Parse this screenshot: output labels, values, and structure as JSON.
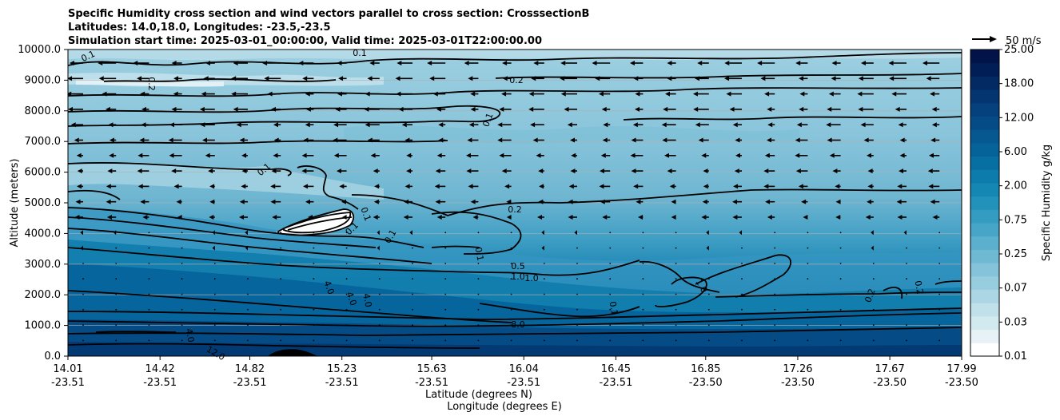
{
  "title": {
    "line1": "Specific Humidity cross section and wind vectors parallel to cross section: CrosssectionB",
    "line2": "Latitudes: 14.0,18.0, Longitudes: -23.5,-23.5",
    "line3": "Simulation start time: 2025-03-01_00:00:00, Valid time: 2025-03-01T22:00:00.00"
  },
  "colors": {
    "contour_line": "#000000",
    "grid": "#b0b0b0",
    "colorbar": [
      "#ffffff",
      "#e6f2f5",
      "#d3e9f0",
      "#c0e0ea",
      "#acd6e4",
      "#98cddf",
      "#84c3d9",
      "#70b9d3",
      "#5bb0cd",
      "#47a6c7",
      "#349cc1",
      "#2292bb",
      "#1587b3",
      "#0d7bab",
      "#086fa3",
      "#06639a",
      "#055890",
      "#054c86",
      "#05417c",
      "#043570",
      "#032a63",
      "#021e57",
      "#02134a"
    ]
  },
  "chart_data": {
    "type": "contourf",
    "ylabel": "Altitude (meters)",
    "xlabel_lat": "Latitude (degrees N)",
    "xlabel_lon": "Longitude (degrees E)",
    "ylim": [
      0,
      10000
    ],
    "yticks": [
      "0.0",
      "1000.0",
      "2000.0",
      "3000.0",
      "4000.0",
      "5000.0",
      "6000.0",
      "7000.0",
      "8000.0",
      "9000.0",
      "10000.0"
    ],
    "xticks": [
      {
        "lat": "14.01",
        "lon": "-23.51"
      },
      {
        "lat": "14.42",
        "lon": "-23.51"
      },
      {
        "lat": "14.82",
        "lon": "-23.51"
      },
      {
        "lat": "15.23",
        "lon": "-23.51"
      },
      {
        "lat": "15.63",
        "lon": "-23.51"
      },
      {
        "lat": "16.04",
        "lon": "-23.51"
      },
      {
        "lat": "16.45",
        "lon": "-23.51"
      },
      {
        "lat": "16.85",
        "lon": "-23.50"
      },
      {
        "lat": "17.26",
        "lon": "-23.50"
      },
      {
        "lat": "17.67",
        "lon": "-23.50"
      },
      {
        "lat": "17.99",
        "lon": "-23.50"
      }
    ],
    "colorbar": {
      "label": "Specific Humidity g/kg",
      "ticks": [
        "25.00",
        "18.00",
        "12.00",
        "6.00",
        "2.00",
        "0.75",
        "0.25",
        "0.07",
        "0.03",
        "0.01"
      ]
    },
    "quiver_key": "50 m/s",
    "contour_labels": [
      "0.1",
      "0.1",
      "0.2",
      "0.2",
      "0.1",
      "0.2",
      "0.1",
      "0.5",
      "1.0",
      "1.0",
      "4.0",
      "8.0",
      "0.1",
      "12.0",
      "4.0",
      "4.0",
      "0.2",
      "0.2",
      "1.0",
      "0.1",
      "0.1",
      "0.1",
      "4.0",
      "0.1"
    ]
  }
}
